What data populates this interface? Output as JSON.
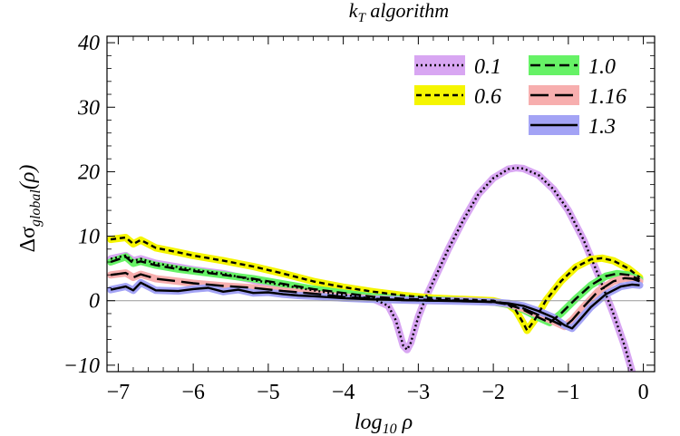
{
  "chart_data": {
    "type": "line",
    "title": "k_T algorithm",
    "title_parts": {
      "main": "k",
      "sub": "T",
      "rest": " algorithm"
    },
    "xlabel": "log_10 ρ",
    "xlabel_parts": {
      "main": "log",
      "sub": "10",
      "rest": " ρ"
    },
    "ylabel": "Δσ_global(ρ)",
    "ylabel_parts": {
      "pre": "Δσ",
      "sub": "global",
      "post": "(ρ)"
    },
    "xlim": [
      -7.15,
      0.15
    ],
    "ylim": [
      -11,
      41
    ],
    "x_ticks": [
      -7,
      -6,
      -5,
      -4,
      -3,
      -2,
      -1,
      0
    ],
    "x_tick_labels": [
      "−7",
      "−6",
      "−5",
      "−4",
      "−3",
      "−2",
      "−1",
      "0"
    ],
    "y_ticks": [
      -10,
      0,
      10,
      20,
      30,
      40
    ],
    "y_tick_labels": [
      "−10",
      "0",
      "10",
      "20",
      "30",
      "40"
    ],
    "grid": false,
    "legend_position": "top-right",
    "series": [
      {
        "name": "0.1",
        "dash": "dotted",
        "band_color": "#d8a6f2",
        "points": [
          [
            -7.1,
            6.5
          ],
          [
            -6.9,
            7
          ],
          [
            -6.8,
            6.2
          ],
          [
            -6.7,
            6.5
          ],
          [
            -6.5,
            5.8
          ],
          [
            -6.2,
            5.2
          ],
          [
            -6,
            4.8
          ],
          [
            -5.6,
            4.2
          ],
          [
            -5.2,
            3.2
          ],
          [
            -4.8,
            2.4
          ],
          [
            -4.4,
            1.6
          ],
          [
            -4,
            0.9
          ],
          [
            -3.6,
            0.3
          ],
          [
            -3.4,
            -0.8
          ],
          [
            -3.3,
            -3
          ],
          [
            -3.2,
            -7
          ],
          [
            -3.15,
            -7.6
          ],
          [
            -3.1,
            -6.5
          ],
          [
            -3,
            -2.5
          ],
          [
            -2.9,
            0.5
          ],
          [
            -2.8,
            3
          ],
          [
            -2.6,
            8
          ],
          [
            -2.4,
            12.5
          ],
          [
            -2.2,
            16.5
          ],
          [
            -2,
            19
          ],
          [
            -1.8,
            20.4
          ],
          [
            -1.7,
            20.6
          ],
          [
            -1.6,
            20.5
          ],
          [
            -1.4,
            19.5
          ],
          [
            -1.2,
            17.3
          ],
          [
            -1,
            14
          ],
          [
            -0.8,
            9.5
          ],
          [
            -0.6,
            4
          ],
          [
            -0.4,
            -2
          ],
          [
            -0.25,
            -7
          ],
          [
            -0.15,
            -11
          ]
        ]
      },
      {
        "name": "0.6",
        "dash": "short-dashed",
        "band_color": "#f5f500",
        "points": [
          [
            -7.1,
            9.5
          ],
          [
            -6.9,
            9.8
          ],
          [
            -6.8,
            8.8
          ],
          [
            -6.7,
            9.4
          ],
          [
            -6.5,
            8.2
          ],
          [
            -6.2,
            7.5
          ],
          [
            -6,
            7
          ],
          [
            -5.6,
            6.2
          ],
          [
            -5.2,
            5.3
          ],
          [
            -4.8,
            4.2
          ],
          [
            -4.4,
            3
          ],
          [
            -4,
            2.1
          ],
          [
            -3.6,
            1.4
          ],
          [
            -3.2,
            0.8
          ],
          [
            -2.8,
            0.4
          ],
          [
            -2.4,
            0.2
          ],
          [
            -2,
            0
          ],
          [
            -1.8,
            -0.6
          ],
          [
            -1.7,
            -1.5
          ],
          [
            -1.6,
            -3.5
          ],
          [
            -1.55,
            -4.6
          ],
          [
            -1.45,
            -3
          ],
          [
            -1.3,
            0
          ],
          [
            -1.1,
            3
          ],
          [
            -0.9,
            5.2
          ],
          [
            -0.7,
            6.4
          ],
          [
            -0.55,
            6.6
          ],
          [
            -0.4,
            6.2
          ],
          [
            -0.2,
            5
          ],
          [
            -0.05,
            3.6
          ]
        ]
      },
      {
        "name": "1.0",
        "dash": "dashed",
        "band_color": "#66f266",
        "points": [
          [
            -7.1,
            6
          ],
          [
            -6.9,
            6.8
          ],
          [
            -6.8,
            5.8
          ],
          [
            -6.7,
            6.1
          ],
          [
            -6.5,
            5.5
          ],
          [
            -6.2,
            4.9
          ],
          [
            -6,
            4.6
          ],
          [
            -5.6,
            4
          ],
          [
            -5.2,
            3.4
          ],
          [
            -4.8,
            2.6
          ],
          [
            -4.4,
            1.8
          ],
          [
            -4,
            1.2
          ],
          [
            -3.6,
            0.6
          ],
          [
            -3.2,
            0.3
          ],
          [
            -2.8,
            0.1
          ],
          [
            -2.4,
            0
          ],
          [
            -2,
            -0.2
          ],
          [
            -1.8,
            -0.6
          ],
          [
            -1.6,
            -1.4
          ],
          [
            -1.4,
            -2.6
          ],
          [
            -1.25,
            -3.4
          ],
          [
            -1.1,
            -2
          ],
          [
            -0.9,
            0.3
          ],
          [
            -0.7,
            2.4
          ],
          [
            -0.5,
            3.8
          ],
          [
            -0.35,
            4.2
          ],
          [
            -0.2,
            4
          ],
          [
            -0.05,
            3.3
          ]
        ]
      },
      {
        "name": "1.16",
        "dash": "long-dashed",
        "band_color": "#f7aeae",
        "points": [
          [
            -7.1,
            4
          ],
          [
            -6.9,
            4.3
          ],
          [
            -6.8,
            3.6
          ],
          [
            -6.7,
            4.1
          ],
          [
            -6.5,
            3.4
          ],
          [
            -6.2,
            3
          ],
          [
            -6,
            2.7
          ],
          [
            -5.6,
            2.3
          ],
          [
            -5.2,
            2
          ],
          [
            -4.8,
            1.5
          ],
          [
            -4.4,
            1.1
          ],
          [
            -4,
            0.6
          ],
          [
            -3.6,
            0.3
          ],
          [
            -3.2,
            0.1
          ],
          [
            -2.8,
            0
          ],
          [
            -2.4,
            0
          ],
          [
            -2,
            -0.2
          ],
          [
            -1.8,
            -0.5
          ],
          [
            -1.6,
            -1.2
          ],
          [
            -1.4,
            -2.2
          ],
          [
            -1.2,
            -3.2
          ],
          [
            -1.05,
            -4
          ],
          [
            -0.95,
            -3
          ],
          [
            -0.8,
            -1
          ],
          [
            -0.6,
            1.5
          ],
          [
            -0.4,
            3
          ],
          [
            -0.25,
            3.5
          ],
          [
            -0.15,
            3.4
          ],
          [
            -0.05,
            3
          ]
        ]
      },
      {
        "name": "1.3",
        "dash": "solid",
        "band_color": "#a3a3f5",
        "points": [
          [
            -7.1,
            1.7
          ],
          [
            -6.9,
            2.2
          ],
          [
            -6.8,
            1.6
          ],
          [
            -6.7,
            2.8
          ],
          [
            -6.5,
            1.6
          ],
          [
            -6.2,
            1.5
          ],
          [
            -6,
            1.8
          ],
          [
            -5.8,
            2
          ],
          [
            -5.6,
            1.4
          ],
          [
            -5.4,
            1.7
          ],
          [
            -5.2,
            1.2
          ],
          [
            -5,
            1.3
          ],
          [
            -4.8,
            1
          ],
          [
            -4.6,
            0.8
          ],
          [
            -4.4,
            0.7
          ],
          [
            -4,
            0.4
          ],
          [
            -3.6,
            0.2
          ],
          [
            -3.2,
            0.1
          ],
          [
            -2.8,
            0
          ],
          [
            -2.4,
            -0.1
          ],
          [
            -2,
            -0.2
          ],
          [
            -1.8,
            -0.4
          ],
          [
            -1.6,
            -0.8
          ],
          [
            -1.4,
            -1.6
          ],
          [
            -1.2,
            -2.6
          ],
          [
            -1.05,
            -3.8
          ],
          [
            -0.95,
            -4.3
          ],
          [
            -0.85,
            -3
          ],
          [
            -0.7,
            -1
          ],
          [
            -0.5,
            1
          ],
          [
            -0.3,
            2.2
          ],
          [
            -0.15,
            2.5
          ],
          [
            -0.05,
            2.4
          ]
        ]
      }
    ]
  }
}
